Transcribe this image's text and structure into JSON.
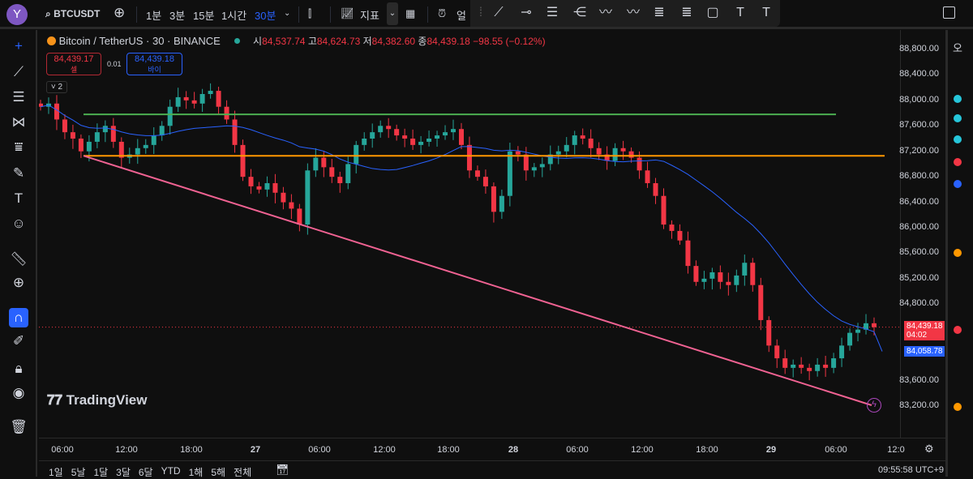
{
  "topbar": {
    "avatar_letter": "Y",
    "symbol": "BTCUSDT",
    "intervals": [
      "1분",
      "3분",
      "15분",
      "1시간",
      "30분"
    ],
    "active_interval": "30분",
    "indicators_label": "지표",
    "alert_label": "얼"
  },
  "legend": {
    "title": "Bitcoin / TetherUS · 30 · BINANCE",
    "o_label": "시",
    "o": "84,537.74",
    "h_label": "고",
    "h": "84,624.73",
    "l_label": "저",
    "l": "84,382.60",
    "c_label": "종",
    "c": "84,439.18",
    "change": "−98.55 (−0.12%)"
  },
  "trade": {
    "sell_price": "84,439.17",
    "sell_label": "셀",
    "spread": "0.01",
    "buy_price": "84,439.18",
    "buy_label": "바이"
  },
  "indicator_toggle": "2",
  "price_axis": {
    "ticks": [
      "88,800.00",
      "88,400.00",
      "88,000.00",
      "87,600.00",
      "87,200.00",
      "86,800.00",
      "86,400.00",
      "86,000.00",
      "85,600.00",
      "85,200.00",
      "84,800.00",
      "83,600.00",
      "83,200.00"
    ],
    "last_price": "84,439.18",
    "countdown": "04:02",
    "ma_value": "84,058.78"
  },
  "time_axis": [
    "06:00",
    "12:00",
    "18:00",
    "27",
    "06:00",
    "12:00",
    "18:00",
    "28",
    "06:00",
    "12:00",
    "18:00",
    "29",
    "06:00",
    "12:0"
  ],
  "bottom": {
    "ranges": [
      "1일",
      "5날",
      "1달",
      "3달",
      "6달",
      "YTD",
      "1해",
      "5해",
      "전체"
    ],
    "clock": "09:55:58 UTC+9"
  },
  "watermark": "TradingView",
  "colors": {
    "up": "#26a69a",
    "down": "#f23645",
    "ma": "#2962ff",
    "support_green": "#4caf50",
    "level_orange": "#ff9800",
    "trendline": "#f06292",
    "accent": "#2962ff"
  },
  "chart_data": {
    "type": "candlestick",
    "symbol": "BTCUSDT",
    "interval": "30",
    "ylim": [
      83000,
      89000
    ],
    "closes": [
      87900,
      87950,
      87700,
      87500,
      87400,
      87200,
      87350,
      87500,
      87600,
      87350,
      87100,
      87150,
      87250,
      87300,
      87450,
      87600,
      87900,
      88050,
      88000,
      87950,
      88100,
      88150,
      87900,
      87700,
      87300,
      86800,
      86650,
      86600,
      86700,
      86550,
      86400,
      86300,
      86050,
      86900,
      87100,
      86950,
      86800,
      86700,
      87000,
      87300,
      87400,
      87500,
      87600,
      87550,
      87450,
      87400,
      87300,
      87350,
      87400,
      87450,
      87500,
      87550,
      87300,
      86900,
      86800,
      86650,
      86250,
      86500,
      87200,
      87150,
      86900,
      86950,
      87000,
      87150,
      87200,
      87300,
      87450,
      87400,
      87250,
      87150,
      87050,
      87250,
      87200,
      87100,
      86900,
      86700,
      86500,
      86050,
      85950,
      85800,
      85400,
      85150,
      85200,
      85300,
      85150,
      85100,
      85250,
      85450,
      85100,
      84550,
      84150,
      83950,
      83800,
      83850,
      83800,
      83750,
      83850,
      83800,
      83950,
      84150,
      84350,
      84400,
      84500,
      84439.18
    ],
    "horizontal_levels": [
      87780,
      87130
    ]
  }
}
